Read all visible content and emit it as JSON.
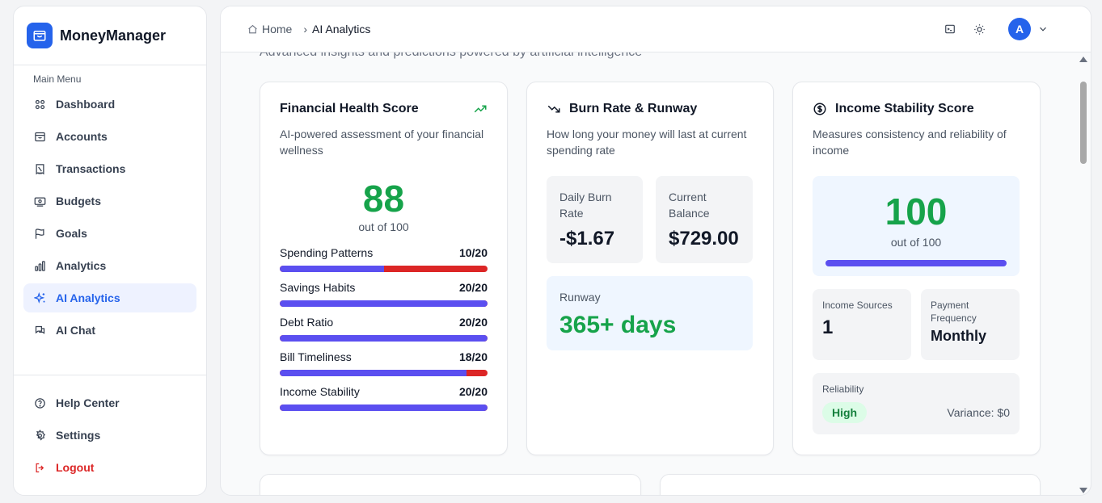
{
  "app": {
    "name": "MoneyManager"
  },
  "sidebar": {
    "section_label": "Main Menu",
    "items": [
      {
        "label": "Dashboard",
        "icon": "grid-icon"
      },
      {
        "label": "Accounts",
        "icon": "wallet-icon"
      },
      {
        "label": "Transactions",
        "icon": "receipt-icon"
      },
      {
        "label": "Budgets",
        "icon": "banknote-icon"
      },
      {
        "label": "Goals",
        "icon": "flag-icon"
      },
      {
        "label": "Analytics",
        "icon": "bar-chart-icon"
      },
      {
        "label": "AI Analytics",
        "icon": "sparkles-icon",
        "active": true
      },
      {
        "label": "AI Chat",
        "icon": "chat-icon"
      }
    ],
    "bottom_items": [
      {
        "label": "Help Center",
        "icon": "help-circle-icon"
      },
      {
        "label": "Settings",
        "icon": "gear-icon"
      },
      {
        "label": "Logout",
        "icon": "logout-icon"
      }
    ]
  },
  "header": {
    "breadcrumb": [
      "Home",
      "AI Analytics"
    ],
    "avatar_initial": "A"
  },
  "page": {
    "subtitle": "Advanced insights and predictions powered by artificial intelligence"
  },
  "health": {
    "title": "Financial Health Score",
    "description": "AI-powered assessment of your financial wellness",
    "score": "88",
    "score_sub": "out of 100",
    "metrics": [
      {
        "label": "Spending Patterns",
        "value": "10/20",
        "fraction": 0.5
      },
      {
        "label": "Savings Habits",
        "value": "20/20",
        "fraction": 1.0
      },
      {
        "label": "Debt Ratio",
        "value": "20/20",
        "fraction": 1.0
      },
      {
        "label": "Bill Timeliness",
        "value": "18/20",
        "fraction": 0.9
      },
      {
        "label": "Income Stability",
        "value": "20/20",
        "fraction": 1.0
      }
    ]
  },
  "burn": {
    "title": "Burn Rate & Runway",
    "description": "How long your money will last at current spending rate",
    "daily_burn_label": "Daily Burn Rate",
    "daily_burn_value": "-$1.67",
    "balance_label": "Current Balance",
    "balance_value": "$729.00",
    "runway_label": "Runway",
    "runway_value": "365+ days"
  },
  "stability": {
    "title": "Income Stability Score",
    "description": "Measures consistency and reliability of income",
    "score": "100",
    "score_sub": "out of 100",
    "score_fraction": 1.0,
    "sources_label": "Income Sources",
    "sources_value": "1",
    "frequency_label": "Payment Frequency",
    "frequency_value": "Monthly",
    "reliability_label": "Reliability",
    "reliability_value": "High",
    "variance": "Variance: $0"
  },
  "colors": {
    "primary": "#2563eb",
    "bar": "#5b4ff0",
    "bar_deficit": "#dc2626",
    "good": "#16a34a",
    "danger": "#dc2626"
  }
}
